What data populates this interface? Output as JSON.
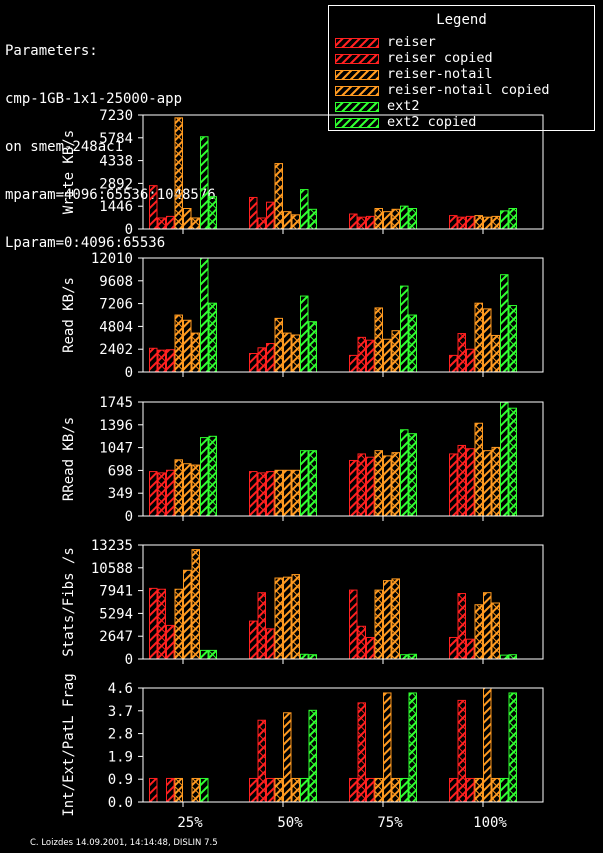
{
  "parameters": {
    "heading": "Parameters:",
    "lines": [
      "cmp-1GB-1x1-25000-app",
      "on smem-248ac1",
      "mparam=4096:65536:1048576",
      "Lparam=0:4096:65536"
    ]
  },
  "legend": {
    "title": "Legend",
    "items": [
      {
        "label": "reiser",
        "color": "#ff2020"
      },
      {
        "label": "reiser copied",
        "color": "#ff2020"
      },
      {
        "label": "reiser-notail",
        "color": "#ff9a20"
      },
      {
        "label": "reiser-notail copied",
        "color": "#ff9a20"
      },
      {
        "label": "ext2",
        "color": "#30ff30"
      },
      {
        "label": "ext2 copied",
        "color": "#30ff30"
      }
    ]
  },
  "footer": "C. Loizdes 14.09.2001, 14:14:48, DISLIN 7.5",
  "chart_data": [
    {
      "type": "bar",
      "ylabel": "Write KB/s",
      "yticks": [
        "0",
        "1446",
        "2892",
        "4338",
        "5784",
        "7230"
      ],
      "ylim": [
        0,
        7230
      ],
      "categories": [
        "25%",
        "50%",
        "75%",
        "100%"
      ],
      "series": [
        {
          "name": "reiser",
          "values": [
            2750,
            2000,
            950,
            850
          ]
        },
        {
          "name": "reiser",
          "values": [
            700,
            700,
            750,
            750
          ]
        },
        {
          "name": "reiser copied",
          "values": [
            800,
            1700,
            800,
            800
          ]
        },
        {
          "name": "reiser-notail",
          "values": [
            7050,
            4150,
            1300,
            850
          ]
        },
        {
          "name": "reiser-notail",
          "values": [
            1300,
            1100,
            1100,
            750
          ]
        },
        {
          "name": "reiser-notail copied",
          "values": [
            700,
            900,
            1250,
            800
          ]
        },
        {
          "name": "ext2",
          "values": [
            5850,
            2500,
            1450,
            1150
          ]
        },
        {
          "name": "ext2 copied",
          "values": [
            2050,
            1250,
            1300,
            1300
          ]
        }
      ]
    },
    {
      "type": "bar",
      "ylabel": "Read KB/s",
      "yticks": [
        "0",
        "2402",
        "4804",
        "7206",
        "9608",
        "12010"
      ],
      "ylim": [
        0,
        12010
      ],
      "categories": [
        "25%",
        "50%",
        "75%",
        "100%"
      ],
      "series": [
        {
          "name": "reiser",
          "values": [
            2500,
            1950,
            1750,
            1750
          ]
        },
        {
          "name": "reiser",
          "values": [
            2300,
            2550,
            3650,
            4050
          ]
        },
        {
          "name": "reiser copied",
          "values": [
            2350,
            3000,
            3350,
            2400
          ]
        },
        {
          "name": "reiser-notail",
          "values": [
            6000,
            5650,
            6750,
            7250
          ]
        },
        {
          "name": "reiser-notail",
          "values": [
            5450,
            4100,
            3450,
            6650
          ]
        },
        {
          "name": "reiser-notail copied",
          "values": [
            4100,
            3900,
            4350,
            3850
          ]
        },
        {
          "name": "ext2",
          "values": [
            12000,
            8000,
            9050,
            10250
          ]
        },
        {
          "name": "ext2 copied",
          "values": [
            7250,
            5300,
            6000,
            7000
          ]
        }
      ]
    },
    {
      "type": "bar",
      "ylabel": "RRead KB/s",
      "yticks": [
        "0",
        "349",
        "698",
        "1047",
        "1396",
        "1745"
      ],
      "ylim": [
        0,
        1745
      ],
      "categories": [
        "25%",
        "50%",
        "75%",
        "100%"
      ],
      "series": [
        {
          "name": "reiser",
          "values": [
            680,
            680,
            850,
            950
          ]
        },
        {
          "name": "reiser",
          "values": [
            660,
            660,
            950,
            1080
          ]
        },
        {
          "name": "reiser copied",
          "values": [
            700,
            680,
            900,
            1030
          ]
        },
        {
          "name": "reiser-notail",
          "values": [
            860,
            700,
            1000,
            1420
          ]
        },
        {
          "name": "reiser-notail",
          "values": [
            800,
            700,
            920,
            1000
          ]
        },
        {
          "name": "reiser-notail copied",
          "values": [
            780,
            700,
            970,
            1050
          ]
        },
        {
          "name": "ext2",
          "values": [
            1200,
            1000,
            1320,
            1740
          ]
        },
        {
          "name": "ext2 copied",
          "values": [
            1220,
            1000,
            1260,
            1650
          ]
        }
      ]
    },
    {
      "type": "bar",
      "ylabel": "Stats/Fibs /s",
      "yticks": [
        "0",
        "2647",
        "5294",
        "7941",
        "10588",
        "13235"
      ],
      "ylim": [
        0,
        13235
      ],
      "categories": [
        "25%",
        "50%",
        "75%",
        "100%"
      ],
      "series": [
        {
          "name": "reiser",
          "values": [
            8200,
            4400,
            8000,
            2500
          ]
        },
        {
          "name": "reiser",
          "values": [
            8100,
            7700,
            3800,
            7600
          ]
        },
        {
          "name": "reiser copied",
          "values": [
            3900,
            3500,
            2500,
            2300
          ]
        },
        {
          "name": "reiser-notail",
          "values": [
            8100,
            9400,
            8000,
            6300
          ]
        },
        {
          "name": "reiser-notail",
          "values": [
            10300,
            9500,
            9100,
            7700
          ]
        },
        {
          "name": "reiser-notail copied",
          "values": [
            12700,
            9800,
            9300,
            6500
          ]
        },
        {
          "name": "ext2",
          "values": [
            1000,
            550,
            500,
            450
          ]
        },
        {
          "name": "ext2 copied",
          "values": [
            1000,
            500,
            550,
            500
          ]
        }
      ]
    },
    {
      "type": "bar",
      "ylabel": "Int/Ext/PatL Frag",
      "yticks": [
        "0.0",
        "0.9",
        "1.9",
        "2.8",
        "3.7",
        "4.6"
      ],
      "ylim": [
        0,
        4.6
      ],
      "categories": [
        "25%",
        "50%",
        "75%",
        "100%"
      ],
      "series": [
        {
          "name": "reiser",
          "values": [
            0.95,
            0.95,
            0.95,
            0.95
          ]
        },
        {
          "name": "reiser",
          "values": [
            0.0,
            3.3,
            4.0,
            4.1
          ]
        },
        {
          "name": "reiser copied",
          "values": [
            0.95,
            0.95,
            0.95,
            0.95
          ]
        },
        {
          "name": "reiser-notail",
          "values": [
            0.95,
            0.95,
            0.95,
            0.95
          ]
        },
        {
          "name": "reiser-notail",
          "values": [
            0.0,
            3.6,
            4.4,
            4.6
          ]
        },
        {
          "name": "reiser-notail copied",
          "values": [
            0.95,
            0.95,
            0.95,
            0.95
          ]
        },
        {
          "name": "ext2",
          "values": [
            0.95,
            0.95,
            0.95,
            0.95
          ]
        },
        {
          "name": "ext2 copied",
          "values": [
            0.0,
            3.7,
            4.4,
            4.4
          ]
        }
      ]
    }
  ]
}
